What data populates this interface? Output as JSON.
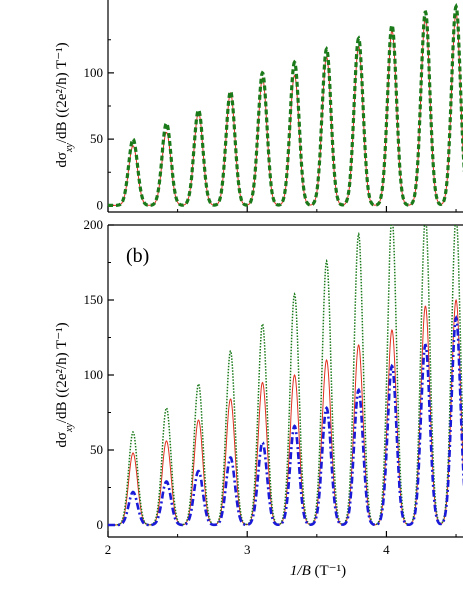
{
  "chart_data": [
    {
      "panel": "top",
      "type": "line",
      "ylabel": {
        "main": "dσ",
        "sub": "xy",
        "rest": "/dB ((2e²/h) T⁻¹)"
      },
      "xlim": [
        2,
        4.55
      ],
      "ylim": [
        -5,
        155
      ],
      "yticks": [
        "0",
        "50",
        "100"
      ],
      "series": [
        {
          "style": "solid",
          "color": "#e03020",
          "peaks": [
            [
              2.18,
              45
            ],
            [
              2.42,
              55
            ],
            [
              2.65,
              70
            ],
            [
              2.88,
              85
            ],
            [
              3.11,
              96
            ],
            [
              3.34,
              98
            ],
            [
              3.57,
              112
            ],
            [
              3.8,
              120
            ],
            [
              4.04,
              132
            ],
            [
              4.28,
              142
            ],
            [
              4.5,
              145
            ]
          ]
        },
        {
          "style": "dashed",
          "color": "#1a7a1a",
          "peaks": [
            [
              2.18,
              50
            ],
            [
              2.42,
              62
            ],
            [
              2.65,
              72
            ],
            [
              2.88,
              86
            ],
            [
              3.11,
              100
            ],
            [
              3.34,
              108
            ],
            [
              3.57,
              118
            ],
            [
              3.8,
              126
            ],
            [
              4.04,
              136
            ],
            [
              4.28,
              146
            ],
            [
              4.5,
              150
            ]
          ]
        }
      ]
    },
    {
      "panel": "bottom",
      "type": "line",
      "label": "(b)",
      "ylabel": {
        "main": "dσ",
        "sub": "xy",
        "rest": "/dB ((2e²/h) T⁻¹)"
      },
      "xlabel": {
        "main": "1/B",
        "rest": " (T⁻¹)"
      },
      "xlim": [
        2,
        4.55
      ],
      "ylim": [
        -8,
        200
      ],
      "xticks": [
        "2",
        "3",
        "4"
      ],
      "yticks": [
        "0",
        "50",
        "100",
        "150",
        "200"
      ],
      "series": [
        {
          "style": "solid",
          "color": "#e03020",
          "peaks": [
            [
              2.18,
              48
            ],
            [
              2.42,
              56
            ],
            [
              2.65,
              70
            ],
            [
              2.88,
              84
            ],
            [
              3.11,
              95
            ],
            [
              3.34,
              100
            ],
            [
              3.57,
              110
            ],
            [
              3.8,
              120
            ],
            [
              4.04,
              130
            ],
            [
              4.28,
              146
            ],
            [
              4.5,
              150
            ]
          ]
        },
        {
          "style": "dotted",
          "color": "#1a7a1a",
          "peaks": [
            [
              2.18,
              62
            ],
            [
              2.42,
              78
            ],
            [
              2.65,
              94
            ],
            [
              2.88,
              116
            ],
            [
              3.11,
              134
            ],
            [
              3.34,
              154
            ],
            [
              3.57,
              176
            ],
            [
              3.8,
              194
            ],
            [
              4.04,
              205
            ],
            [
              4.28,
              205
            ],
            [
              4.5,
              205
            ]
          ]
        },
        {
          "style": "dashdot",
          "color": "#1a1ad8",
          "peaks": [
            [
              2.18,
              22
            ],
            [
              2.42,
              29
            ],
            [
              2.65,
              36
            ],
            [
              2.88,
              45
            ],
            [
              3.11,
              55
            ],
            [
              3.34,
              66
            ],
            [
              3.57,
              78
            ],
            [
              3.8,
              90
            ],
            [
              4.04,
              106
            ],
            [
              4.28,
              120
            ],
            [
              4.5,
              138
            ]
          ]
        }
      ]
    }
  ]
}
